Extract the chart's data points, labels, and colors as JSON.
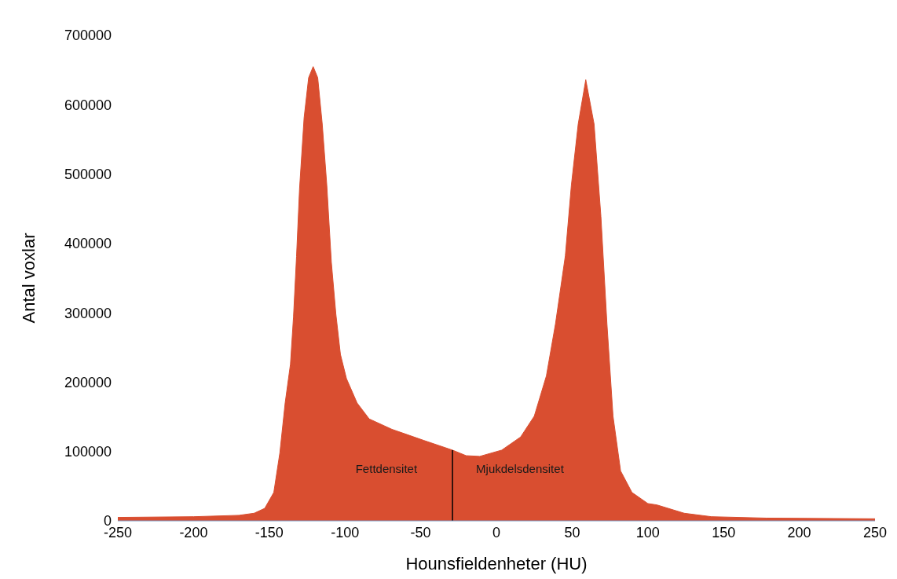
{
  "chart_data": {
    "type": "area",
    "xlabel": "Hounsfieldenheter (HU)",
    "ylabel": "Antal voxlar",
    "color": "#d94e30",
    "x": [
      -250,
      -200,
      -170,
      -160,
      -153,
      -147,
      -143,
      -139.5,
      -136,
      -134,
      -132,
      -130,
      -127,
      -124,
      -121,
      -118,
      -115,
      -112,
      -109,
      -106,
      -103,
      -99,
      -92,
      -84,
      -69,
      -48,
      -29,
      -20,
      -11,
      3.5,
      16,
      25,
      33,
      39,
      45.5,
      49.5,
      54,
      59,
      64.5,
      69,
      73,
      77,
      82,
      89.5,
      100,
      106,
      124,
      142,
      178,
      250
    ],
    "values": [
      5000,
      6000,
      8000,
      11000,
      18000,
      41000,
      98000,
      170000,
      226000,
      294000,
      381000,
      479000,
      581000,
      639000,
      655000,
      639000,
      572000,
      484000,
      373000,
      298000,
      240000,
      205000,
      170000,
      147000,
      132000,
      116000,
      102000,
      94000,
      93000,
      102000,
      121000,
      151000,
      209000,
      284000,
      382000,
      484000,
      572000,
      636000,
      572000,
      439000,
      284000,
      151000,
      72000,
      41000,
      25000,
      23000,
      11000,
      6000,
      4000,
      3000
    ],
    "xlim": [
      -250,
      250
    ],
    "xticks": [
      -250,
      -200,
      -150,
      -100,
      -50,
      0,
      50,
      100,
      150,
      200,
      250
    ],
    "ylim": [
      0,
      700000
    ],
    "yticks": [
      0,
      100000,
      200000,
      300000,
      400000,
      500000,
      600000,
      700000
    ],
    "grid": false,
    "legend": false,
    "ref_lines": [
      {
        "axis": "x",
        "value": -29,
        "color": "#000000"
      }
    ],
    "annotations": [
      "Fettdensitet",
      "Mjukdelsdensitet"
    ]
  }
}
